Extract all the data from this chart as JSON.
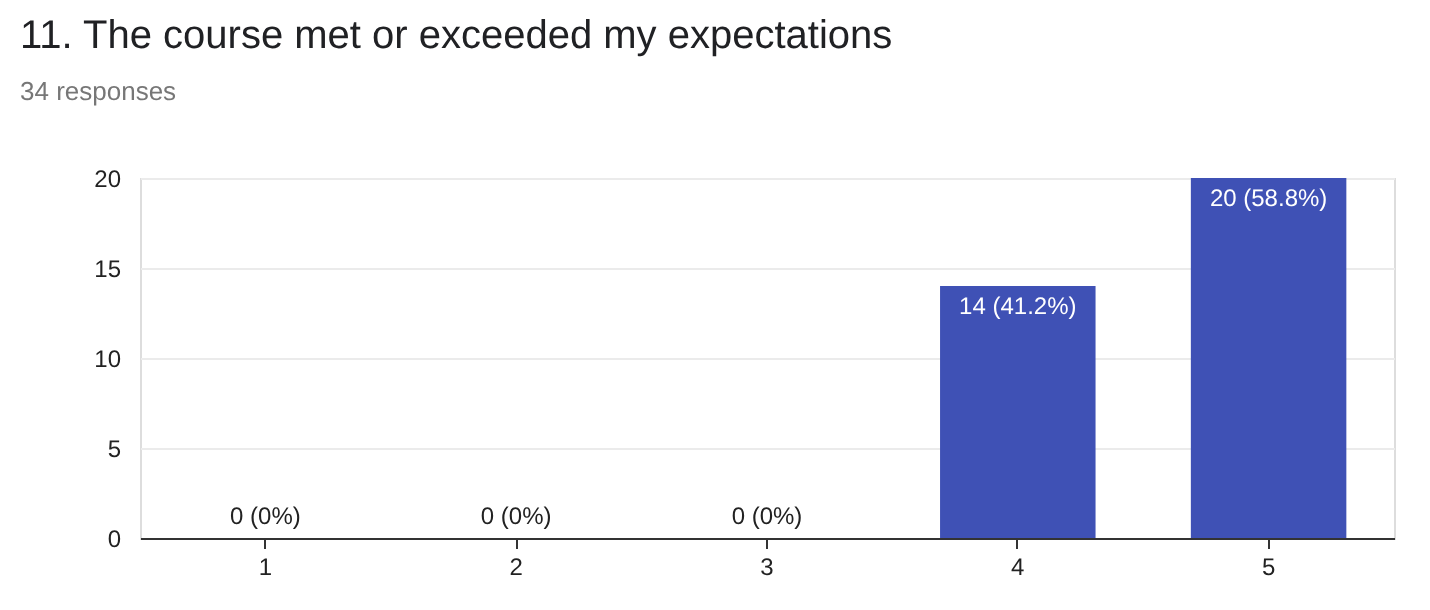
{
  "chart_data": {
    "type": "bar",
    "title": "11. The course met or exceeded my expectations",
    "subtitle": "34 responses",
    "categories": [
      "1",
      "2",
      "3",
      "4",
      "5"
    ],
    "values": [
      0,
      0,
      0,
      14,
      20
    ],
    "value_labels": [
      "0 (0%)",
      "0 (0%)",
      "0 (0%)",
      "14 (41.2%)",
      "20 (58.8%)"
    ],
    "color": "#3f51b5",
    "ylim": [
      0,
      20
    ],
    "yticks": [
      0,
      5,
      10,
      15,
      20
    ],
    "grid": "y"
  }
}
